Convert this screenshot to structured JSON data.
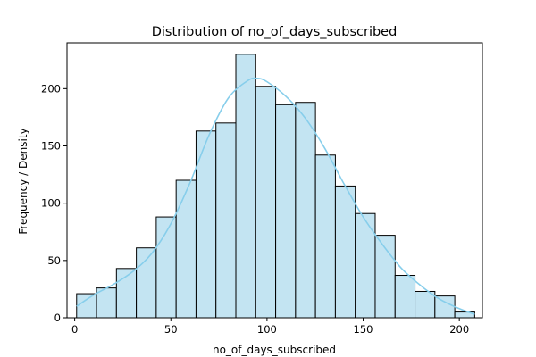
{
  "chart_data": {
    "type": "bar",
    "subtype": "histogram",
    "title": "Distribution of no_of_days_subscribed",
    "xlabel": "no_of_days_subscribed",
    "ylabel": "Frequency / Density",
    "xlim": [
      -4,
      212
    ],
    "ylim": [
      0,
      240
    ],
    "xticks": [
      0,
      50,
      100,
      150,
      200
    ],
    "yticks": [
      0,
      50,
      100,
      150,
      200
    ],
    "grid": false,
    "legend": "none",
    "bins": [
      {
        "start": 1,
        "end": 11.35,
        "count": 21
      },
      {
        "start": 11.35,
        "end": 21.7,
        "count": 26
      },
      {
        "start": 21.7,
        "end": 32.05,
        "count": 43
      },
      {
        "start": 32.05,
        "end": 42.4,
        "count": 61
      },
      {
        "start": 42.4,
        "end": 52.75,
        "count": 88
      },
      {
        "start": 52.75,
        "end": 63.1,
        "count": 120
      },
      {
        "start": 63.1,
        "end": 73.45,
        "count": 163
      },
      {
        "start": 73.45,
        "end": 83.8,
        "count": 170
      },
      {
        "start": 83.8,
        "end": 94.15,
        "count": 230
      },
      {
        "start": 94.15,
        "end": 104.5,
        "count": 202
      },
      {
        "start": 104.5,
        "end": 114.85,
        "count": 186
      },
      {
        "start": 114.85,
        "end": 125.2,
        "count": 188
      },
      {
        "start": 125.2,
        "end": 135.55,
        "count": 142
      },
      {
        "start": 135.55,
        "end": 145.9,
        "count": 115
      },
      {
        "start": 145.9,
        "end": 156.25,
        "count": 91
      },
      {
        "start": 156.25,
        "end": 166.6,
        "count": 72
      },
      {
        "start": 166.6,
        "end": 176.95,
        "count": 37
      },
      {
        "start": 176.95,
        "end": 187.3,
        "count": 23
      },
      {
        "start": 187.3,
        "end": 197.65,
        "count": 19
      },
      {
        "start": 197.65,
        "end": 208,
        "count": 5
      }
    ],
    "kde": {
      "x": [
        1,
        10,
        20,
        30,
        40,
        50,
        60,
        70,
        80,
        90,
        95,
        100,
        110,
        120,
        130,
        140,
        150,
        160,
        170,
        180,
        190,
        200,
        208
      ],
      "y": [
        10,
        20,
        29,
        40,
        56,
        82,
        118,
        160,
        192,
        207,
        209,
        206,
        193,
        174,
        148,
        117,
        88,
        64,
        43,
        28,
        16,
        8,
        3
      ]
    },
    "colors": {
      "bar_fill": "#c3e4f2",
      "bar_edge": "#000000",
      "kde_line": "#87ceeb"
    }
  }
}
